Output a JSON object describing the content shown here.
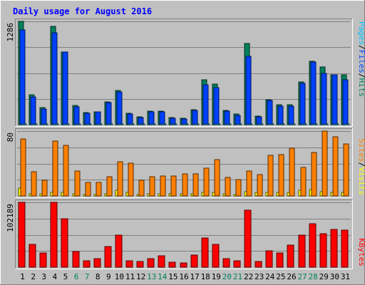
{
  "colors": {
    "background": "#c0c0c0",
    "title": "#0000ff",
    "hits": "#00805c",
    "files": "#0040ff",
    "pages": "#00c0ff",
    "visits": "#ffff00",
    "sites": "#ff8000",
    "kbytes": "#ff0000",
    "weekend": "#00805c",
    "weekday": "#000000"
  },
  "chart_data": {
    "type": "bar",
    "title": "Daily usage for August 2016",
    "categories": [
      "1",
      "2",
      "3",
      "4",
      "5",
      "6",
      "7",
      "8",
      "9",
      "10",
      "11",
      "12",
      "13",
      "14",
      "15",
      "16",
      "17",
      "18",
      "19",
      "20",
      "21",
      "22",
      "23",
      "24",
      "25",
      "26",
      "27",
      "28",
      "29",
      "30",
      "31"
    ],
    "weekend_days": [
      "6",
      "7",
      "13",
      "14",
      "20",
      "21",
      "27",
      "28"
    ],
    "panels": [
      {
        "name": "hits_files_pages",
        "axis_max_label": "1286",
        "ylim": [
          0,
          1286
        ],
        "legend": [
          "Pages",
          "/",
          "Files",
          "/",
          "Hits"
        ],
        "series": [
          {
            "name": "Hits",
            "values": [
              1286,
              370,
              212,
              1227,
              907,
              236,
              150,
              163,
              286,
              426,
              141,
              94,
              168,
              168,
              89,
              81,
              186,
              562,
              507,
              178,
              130,
              1010,
              103,
              311,
              245,
              245,
              530,
              790,
              718,
              625,
              618
            ]
          },
          {
            "name": "Files",
            "values": [
              1180,
              344,
              198,
              1143,
              907,
              224,
              140,
              157,
              271,
              409,
              129,
              90,
              160,
              162,
              83,
              69,
              175,
              500,
              460,
              168,
              117,
              849,
              96,
              299,
              227,
              232,
              514,
              778,
              640,
              623,
              563
            ]
          },
          {
            "name": "Pages",
            "values": [
              12,
              8,
              6,
              10,
              9,
              5,
              4,
              6,
              7,
              8,
              5,
              3,
              5,
              5,
              3,
              3,
              6,
              10,
              9,
              6,
              4,
              12,
              3,
              8,
              7,
              7,
              9,
              11,
              10,
              9,
              9
            ]
          }
        ]
      },
      {
        "name": "visits_sites",
        "axis_max_label": "80",
        "ylim": [
          0,
          80
        ],
        "legend": [
          "Sites",
          "/",
          "Visits"
        ],
        "series": [
          {
            "name": "Visits",
            "values": [
              10,
              3,
              3,
              4,
              4,
              3,
              2,
              2,
              3,
              7,
              4,
              2,
              3,
              3,
              3,
              3,
              3,
              4,
              4,
              3,
              2,
              5,
              4,
              4,
              4,
              4,
              7,
              8,
              5,
              4,
              4
            ]
          },
          {
            "name": "Sites",
            "values": [
              70,
              30,
              19,
              68,
              62,
              31,
              17,
              17,
              24,
              42,
              40,
              19,
              24,
              25,
              25,
              27,
              27,
              34,
              45,
              23,
              20,
              31,
              26,
              50,
              51,
              59,
              35,
              54,
              80,
              73,
              64
            ]
          }
        ]
      },
      {
        "name": "kbytes",
        "axis_max_label": "102189",
        "ylim": [
          0,
          102189
        ],
        "legend": [
          "KBytes"
        ],
        "series": [
          {
            "name": "KBytes",
            "values": [
              102189,
              36000,
              22000,
              102189,
              76000,
              25000,
              10000,
              14000,
              33000,
              51000,
              10000,
              9000,
              14000,
              18000,
              8000,
              7000,
              19000,
              46000,
              36000,
              14000,
              10000,
              90000,
              9000,
              26000,
              22000,
              35000,
              50000,
              68000,
              53000,
              59000,
              58000
            ]
          }
        ]
      }
    ],
    "grid": true
  }
}
